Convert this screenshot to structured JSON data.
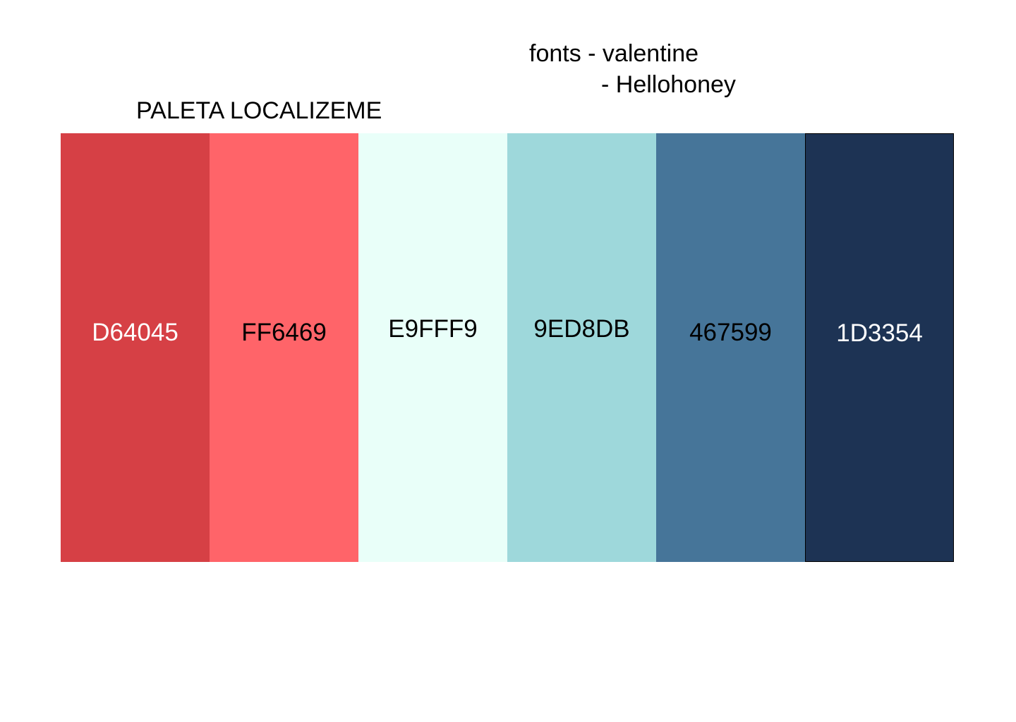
{
  "fonts": {
    "line1": "fonts - valentine",
    "line2": "- Hellohoney"
  },
  "palette": {
    "title": "PALETA LOCALIZEME",
    "swatches": [
      {
        "hex": "D64045",
        "color": "#D64045",
        "text_color": "#FFFFFF"
      },
      {
        "hex": "FF6469",
        "color": "#FF6469",
        "text_color": "#000000"
      },
      {
        "hex": "E9FFF9",
        "color": "#E9FFF9",
        "text_color": "#000000"
      },
      {
        "hex": "9ED8DB",
        "color": "#9ED8DB",
        "text_color": "#000000"
      },
      {
        "hex": "467599",
        "color": "#467599",
        "text_color": "#000000"
      },
      {
        "hex": "1D3354",
        "color": "#1D3354",
        "text_color": "#FFFFFF"
      }
    ]
  }
}
